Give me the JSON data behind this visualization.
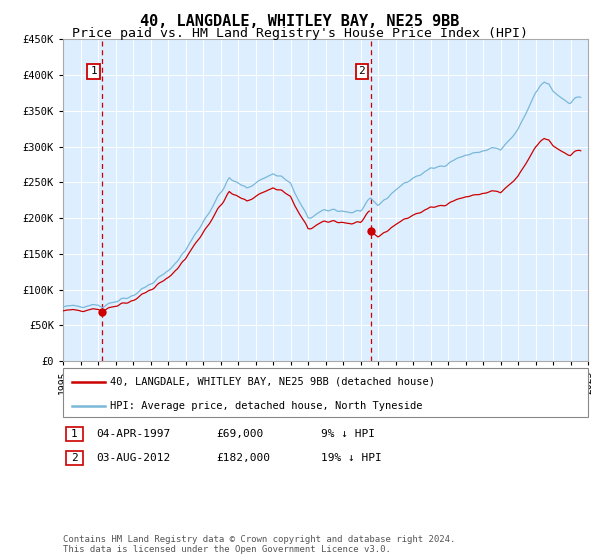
{
  "title": "40, LANGDALE, WHITLEY BAY, NE25 9BB",
  "subtitle": "Price paid vs. HM Land Registry's House Price Index (HPI)",
  "sale1_x": 1997.25,
  "sale1_y": 69000,
  "sale2_x": 2012.583,
  "sale2_y": 182000,
  "vline1_x": 1997.25,
  "vline2_x": 2012.583,
  "ylim": [
    0,
    450000
  ],
  "xlim": [
    1995.0,
    2025.0
  ],
  "yticks": [
    0,
    50000,
    100000,
    150000,
    200000,
    250000,
    300000,
    350000,
    400000,
    450000
  ],
  "xticks": [
    1995,
    1996,
    1997,
    1998,
    1999,
    2000,
    2001,
    2002,
    2003,
    2004,
    2005,
    2006,
    2007,
    2008,
    2009,
    2010,
    2011,
    2012,
    2013,
    2014,
    2015,
    2016,
    2017,
    2018,
    2019,
    2020,
    2021,
    2022,
    2023,
    2024,
    2025
  ],
  "hpi_color": "#7ab8d9",
  "sale_color": "#cc0000",
  "vline_color": "#cc0000",
  "bg_color": "#ddeeff",
  "legend_label_red": "40, LANGDALE, WHITLEY BAY, NE25 9BB (detached house)",
  "legend_label_blue": "HPI: Average price, detached house, North Tyneside",
  "table_rows": [
    {
      "label": "1",
      "date": "04-APR-1997",
      "price": "£69,000",
      "hpi": "9% ↓ HPI"
    },
    {
      "label": "2",
      "date": "03-AUG-2012",
      "price": "£182,000",
      "hpi": "19% ↓ HPI"
    }
  ],
  "footer": "Contains HM Land Registry data © Crown copyright and database right 2024.\nThis data is licensed under the Open Government Licence v3.0.",
  "title_fontsize": 11,
  "subtitle_fontsize": 9.5
}
